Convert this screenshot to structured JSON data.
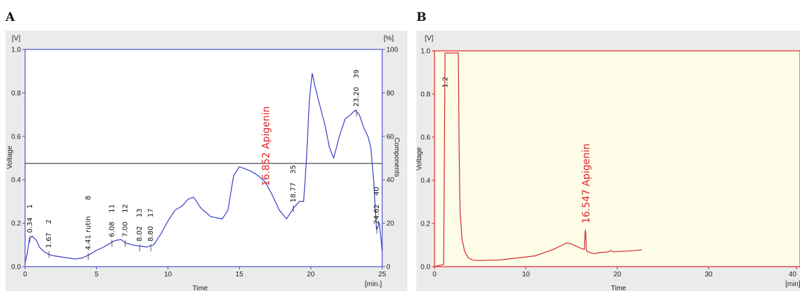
{
  "panels": [
    {
      "letter": "A"
    },
    {
      "letter": "B"
    }
  ],
  "chart_data": [
    {
      "type": "line",
      "panel": "A",
      "xlabel": "Time",
      "ylabel": "Voltage",
      "y2label": "Components",
      "x_unit": "[min.]",
      "y_unit": "[V]",
      "y2_unit": "[%]",
      "xlim": [
        0,
        25
      ],
      "ylim": [
        0,
        1.0
      ],
      "y2lim": [
        0,
        100
      ],
      "xticks": [
        "0",
        "5",
        "10",
        "15",
        "20",
        "25"
      ],
      "yticks": [
        "0.0",
        "0.2",
        "0.4",
        "0.6",
        "0.8",
        "1.0"
      ],
      "y2ticks": [
        "0",
        "20",
        "40",
        "60",
        "80",
        "100"
      ],
      "hline_y": 0.475,
      "series": [
        {
          "x": [
            0,
            0.15,
            0.3,
            0.5,
            0.8,
            1.0,
            1.3,
            1.7,
            2.0,
            2.5,
            3.0,
            3.5,
            4.0,
            4.5,
            5.0,
            5.5,
            6.0,
            6.3,
            6.7,
            7.0,
            7.5,
            8.0,
            8.5,
            9.0,
            9.5,
            10.0,
            10.5,
            11.0,
            11.4,
            11.8,
            12.3,
            13.0,
            13.8,
            14.2,
            14.6,
            15.0,
            15.4,
            15.8,
            16.3,
            16.8,
            17.3,
            17.8,
            18.3,
            18.8,
            19.2,
            19.5,
            19.7,
            19.9,
            20.1,
            20.3,
            20.6,
            21.0,
            21.3,
            21.6,
            22.0,
            22.4,
            22.8,
            23.1,
            23.4,
            23.7,
            24.0,
            24.2,
            24.4,
            24.6,
            24.8,
            25.0
          ],
          "y": [
            0.02,
            0.06,
            0.13,
            0.14,
            0.12,
            0.09,
            0.07,
            0.055,
            0.05,
            0.045,
            0.04,
            0.035,
            0.04,
            0.055,
            0.075,
            0.09,
            0.11,
            0.12,
            0.125,
            0.11,
            0.1,
            0.095,
            0.09,
            0.1,
            0.15,
            0.21,
            0.26,
            0.28,
            0.31,
            0.32,
            0.27,
            0.23,
            0.22,
            0.26,
            0.42,
            0.46,
            0.45,
            0.44,
            0.42,
            0.39,
            0.33,
            0.26,
            0.22,
            0.27,
            0.3,
            0.3,
            0.5,
            0.77,
            0.89,
            0.83,
            0.75,
            0.65,
            0.55,
            0.5,
            0.6,
            0.68,
            0.7,
            0.72,
            0.7,
            0.64,
            0.6,
            0.55,
            0.4,
            0.17,
            0.2,
            0.07
          ]
        }
      ],
      "peak_labels": [
        {
          "time": "0.34",
          "num": "1",
          "x": 0.34,
          "y": 0.13
        },
        {
          "time": "1.67",
          "num": "2",
          "x": 1.67,
          "y": 0.06
        },
        {
          "time": "4.41 rutin",
          "num": "8",
          "x": 4.41,
          "y": 0.05
        },
        {
          "time": "6.08",
          "num": "11",
          "x": 6.08,
          "y": 0.11
        },
        {
          "time": "7.00",
          "num": "12",
          "x": 7.0,
          "y": 0.11
        },
        {
          "time": "8.02",
          "num": "13",
          "x": 8.02,
          "y": 0.09
        },
        {
          "time": "8.80",
          "num": "17",
          "x": 8.8,
          "y": 0.09
        },
        {
          "time": "18.77",
          "num": "35",
          "x": 18.77,
          "y": 0.27
        },
        {
          "time": "23.20",
          "num": "39",
          "x": 23.2,
          "y": 0.71
        },
        {
          "time": "24.62",
          "num": "40",
          "x": 24.62,
          "y": 0.17
        }
      ],
      "annotation": {
        "text": "16.852 Apigenin",
        "x": 16.85,
        "y": 0.37
      }
    },
    {
      "type": "line",
      "panel": "B",
      "xlabel": "Time",
      "ylabel": "Voltage",
      "x_unit": "[min]",
      "y_unit": "[V]",
      "xlim": [
        0,
        40
      ],
      "ylim": [
        0,
        1.0
      ],
      "xticks": [
        "0",
        "10",
        "20",
        "30",
        "40"
      ],
      "yticks": [
        "0.0",
        "0.2",
        "0.4",
        "0.6",
        "0.8",
        "1.0"
      ],
      "series": [
        {
          "x": [
            0,
            1.0,
            1.15,
            1.2,
            2.6,
            2.7,
            2.8,
            3.0,
            3.3,
            3.7,
            4.2,
            5.0,
            6.0,
            7.0,
            8.0,
            9.0,
            10.0,
            11.0,
            12.0,
            13.0,
            14.0,
            14.5,
            15.0,
            15.5,
            16.0,
            16.4,
            16.5,
            16.55,
            16.6,
            16.7,
            17.0,
            17.5,
            18.0,
            19.0,
            19.3,
            19.6,
            20.0,
            21.0,
            22.0,
            22.7
          ],
          "y": [
            0.0,
            0.01,
            0.99,
            0.99,
            0.99,
            0.5,
            0.25,
            0.13,
            0.07,
            0.04,
            0.03,
            0.028,
            0.03,
            0.03,
            0.035,
            0.04,
            0.045,
            0.05,
            0.065,
            0.08,
            0.1,
            0.11,
            0.105,
            0.095,
            0.085,
            0.08,
            0.17,
            0.16,
            0.08,
            0.07,
            0.065,
            0.06,
            0.065,
            0.068,
            0.075,
            0.068,
            0.07,
            0.072,
            0.075,
            0.078
          ]
        }
      ],
      "peak_labels": [
        {
          "time": "1.2",
          "x": 1.2,
          "y": 0.99
        }
      ],
      "annotation": {
        "text": "16.547 Apigenin",
        "x": 16.55,
        "y": 0.2
      }
    }
  ]
}
